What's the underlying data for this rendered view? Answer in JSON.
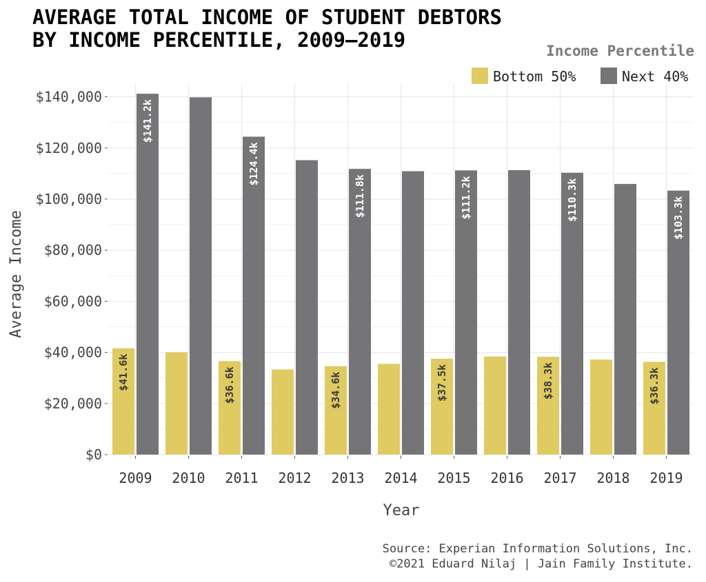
{
  "title_lines": [
    "AVERAGE TOTAL INCOME OF STUDENT DEBTORS",
    "BY INCOME PERCENTILE, 2009–2019"
  ],
  "legend": {
    "title": "Income Percentile",
    "placement": "top-right"
  },
  "source_lines": [
    "Source: Experian Information Solutions, Inc.",
    "©2021 Eduard Nilaj | Jain Family Institute."
  ],
  "colors": {
    "bottom50": "#dfcb62",
    "next40": "#757477",
    "grid": "#e6e6e6",
    "label_on_gold": "#3a3a3a",
    "label_on_gray": "#ffffff"
  },
  "chart_data": {
    "type": "bar",
    "title": "AVERAGE TOTAL INCOME OF STUDENT DEBTORS BY INCOME PERCENTILE, 2009–2019",
    "xlabel": "Year",
    "ylabel": "Average Income",
    "categories": [
      "2009",
      "2010",
      "2011",
      "2012",
      "2013",
      "2014",
      "2015",
      "2016",
      "2017",
      "2018",
      "2019"
    ],
    "ylim": [
      0,
      145000
    ],
    "yticks": [
      0,
      20000,
      40000,
      60000,
      80000,
      100000,
      120000,
      140000
    ],
    "ytick_labels": [
      "$0",
      "$20,000",
      "$40,000",
      "$60,000",
      "$80,000",
      "$100,000",
      "$120,000",
      "$140,000"
    ],
    "grid": true,
    "series": [
      {
        "name": "Bottom 50%",
        "values": [
          41600,
          40000,
          36600,
          33300,
          34600,
          35500,
          37500,
          38400,
          38300,
          37200,
          36300
        ],
        "data_labels": [
          "$41.6k",
          "",
          "$36.6k",
          "",
          "$34.6k",
          "",
          "$37.5k",
          "",
          "$38.3k",
          "",
          "$36.3k"
        ]
      },
      {
        "name": "Next 40%",
        "values": [
          141200,
          139800,
          124400,
          115200,
          111800,
          110900,
          111200,
          111300,
          110300,
          105900,
          103300
        ],
        "data_labels": [
          "$141.2k",
          "",
          "$124.4k",
          "",
          "$111.8k",
          "",
          "$111.2k",
          "",
          "$110.3k",
          "",
          "$103.3k"
        ]
      }
    ]
  }
}
